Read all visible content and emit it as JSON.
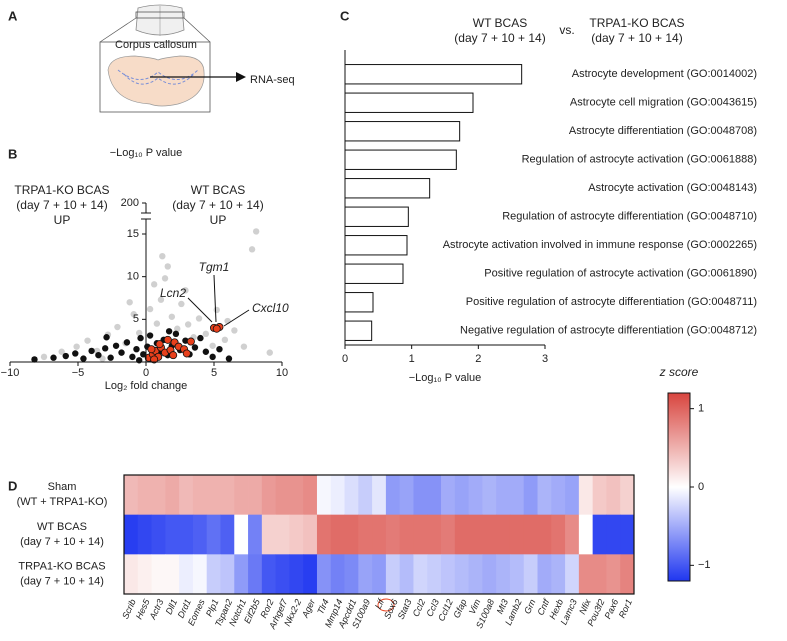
{
  "panel_labels": [
    "A",
    "B",
    "C",
    "D"
  ],
  "diagram": {
    "labels": [
      "Corpus callosum",
      "RNA-seq"
    ]
  },
  "chart_data": [
    {
      "type": "scatter",
      "xlabel": "Log₂ fold change",
      "ylabel": "−Log₁₀ P value",
      "xlim": [
        -10,
        10
      ],
      "xticks": [
        {
          "value": -10,
          "label": "−10"
        },
        {
          "value": -5,
          "label": "−5"
        },
        0,
        5,
        10
      ],
      "ylim": [
        0,
        15
      ],
      "yticks": [
        5,
        10,
        15
      ],
      "y_break_tick": 200,
      "annotations": [
        {
          "text": [
            "TRPA1-KO BCAS",
            "(day 7 + 10 + 14)",
            "UP"
          ],
          "color": "#e8401c"
        },
        {
          "text": [
            "WT BCAS",
            "(day 7 + 10 + 14)",
            "UP"
          ],
          "color": "#2639e0"
        }
      ],
      "point_labels": [
        "Tgm1",
        "Lcn2",
        "Cxcl10"
      ],
      "series": [
        {
          "color": "#c4c4c4",
          "x": [
            -7.5,
            -6.2,
            -5.1,
            -4.3,
            -3.6,
            -2.8,
            -2.1,
            -1.5,
            -0.9,
            -0.5,
            0.3,
            0.8,
            1.1,
            1.4,
            1.6,
            1.9,
            2.3,
            2.6,
            3.1,
            3.5,
            3.9,
            4.4,
            5.2,
            5.8,
            6.5,
            7.2,
            8.1,
            7.8,
            1.2,
            0.6,
            -1.2,
            2.9,
            6.0,
            4.9,
            -3.2,
            9.1
          ],
          "values": [
            0.6,
            1.2,
            1.8,
            2.5,
            1.3,
            3.2,
            4.1,
            2.2,
            5.6,
            3.4,
            6.2,
            4.5,
            7.3,
            9.8,
            11.2,
            5.3,
            3.9,
            6.8,
            4.4,
            2.9,
            5.1,
            3.3,
            6.1,
            2.6,
            3.7,
            1.8,
            15.3,
            13.2,
            12.4,
            9.1,
            7.0,
            8.4,
            4.8,
            1.9,
            0.4,
            1.1
          ]
        },
        {
          "color": "#111111",
          "x": [
            -8.2,
            -6.8,
            -5.9,
            -5.2,
            -4.6,
            -4.0,
            -3.5,
            -3.0,
            -2.6,
            -2.2,
            -1.8,
            -1.4,
            -1.0,
            -0.7,
            -0.4,
            -0.2,
            0.1,
            0.3,
            0.5,
            0.8,
            1.0,
            1.3,
            1.6,
            1.9,
            2.2,
            2.5,
            2.9,
            3.2,
            3.6,
            4.0,
            4.4,
            4.9,
            5.4,
            6.1,
            -2.9,
            -0.5,
            0.4,
            1.7
          ],
          "values": [
            0.3,
            0.5,
            0.7,
            1.0,
            0.4,
            1.3,
            0.8,
            1.6,
            0.5,
            1.9,
            1.1,
            2.3,
            0.6,
            1.5,
            2.8,
            0.9,
            1.8,
            3.1,
            0.7,
            2.2,
            1.2,
            2.6,
            0.8,
            1.9,
            3.3,
            1.4,
            2.5,
            0.9,
            1.7,
            2.8,
            1.2,
            0.6,
            1.5,
            0.4,
            2.9,
            0.2,
            0.3,
            3.6
          ]
        },
        {
          "color": "#e8401c",
          "x": [
            5.0,
            5.4,
            5.2,
            0.2,
            0.5,
            0.7,
            0.9,
            1.1,
            1.4,
            1.8,
            2.1,
            2.4,
            2.8,
            3.3,
            0.4,
            1.6,
            1.0,
            0.6,
            3.0,
            2.0
          ],
          "values": [
            4.0,
            4.1,
            3.9,
            0.5,
            0.9,
            1.3,
            0.6,
            1.7,
            1.1,
            1.4,
            2.3,
            1.8,
            1.5,
            2.4,
            1.5,
            2.6,
            2.1,
            0.3,
            1.0,
            0.8
          ]
        }
      ]
    },
    {
      "type": "bar",
      "orientation": "horizontal",
      "comparison": {
        "left": [
          "WT BCAS",
          "(day 7 + 10 + 14)"
        ],
        "left_color": "#2639e0",
        "vs": "vs.",
        "right": [
          "TRPA1-KO BCAS",
          "(day 7 + 10 + 14)"
        ],
        "right_color": "#e8401c"
      },
      "xlabel": "−Log₁₀ P value",
      "categories": [
        "Astrocyte development (GO:0014002)",
        "Astrocyte cell migration (GO:0043615)",
        "Astrocyte differentiation (GO:0048708)",
        "Regulation of astrocyte activation (GO:0061888)",
        "Astrocyte activation (GO:0048143)",
        "Regulation of astrocyte differentiation (GO:0048710)",
        "Astrocyte activation involved in immune response (GO:0002265)",
        "Positive regulation of astrocyte activation (GO:0061890)",
        "Positive regulation of astrocyte differentiation (GO:0048711)",
        "Negative regulation of astrocyte differentiation (GO:0048712)"
      ],
      "values": [
        2.65,
        1.92,
        1.72,
        1.67,
        1.27,
        0.95,
        0.93,
        0.87,
        0.42,
        0.4
      ],
      "color": "#ffffff",
      "xlim": [
        0,
        3
      ],
      "xticks": [
        0,
        1,
        2,
        3
      ]
    },
    {
      "type": "heatmap",
      "rows": [
        [
          "Sham",
          "(WT + TRPA1-KO)"
        ],
        [
          "WT BCAS",
          "(day 7 + 10 + 14)"
        ],
        [
          "TRPA1-KO BCAS",
          "(day 7 + 10 + 14)"
        ]
      ],
      "categories": [
        "Scrib",
        "Hes5",
        "Actr3",
        "Dll1",
        "Drd1",
        "Eomes",
        "Plp1",
        "Tspan2",
        "Notch1",
        "Eif2b5",
        "Ror2",
        "Arhgef7",
        "Nkx2-2",
        "Ager",
        "Tlr4",
        "Mmp14",
        "Apcdd1",
        "S100a9",
        "Lif",
        "Sox6",
        "Stat3",
        "Ccl2",
        "Ccl3",
        "Ccl12",
        "Gfap",
        "Vim",
        "S100a8",
        "Mt3",
        "Lamb2",
        "Grn",
        "Cntf",
        "Hexb",
        "Lamc3",
        "Nfix",
        "Pou3f2",
        "Pax6",
        "Ror1"
      ],
      "values": [
        [
          0.45,
          0.5,
          0.5,
          0.55,
          0.45,
          0.5,
          0.5,
          0.5,
          0.55,
          0.55,
          0.65,
          0.7,
          0.7,
          0.75,
          -0.05,
          -0.1,
          -0.2,
          -0.3,
          -0.15,
          -0.6,
          -0.55,
          -0.65,
          -0.65,
          -0.5,
          -0.55,
          -0.5,
          -0.45,
          -0.5,
          -0.5,
          -0.6,
          -0.45,
          -0.5,
          -0.55,
          0.15,
          0.35,
          0.4,
          0.3
        ],
        [
          -1.15,
          -1.1,
          -1.05,
          -1.0,
          -1.0,
          -0.95,
          -0.85,
          -0.95,
          0.0,
          -0.75,
          0.3,
          0.3,
          0.35,
          0.4,
          0.9,
          0.95,
          0.95,
          0.9,
          0.9,
          0.85,
          0.9,
          0.9,
          0.9,
          0.85,
          0.95,
          0.95,
          0.95,
          0.95,
          0.95,
          0.95,
          0.95,
          0.9,
          0.75,
          0.0,
          -1.1,
          -1.1,
          -1.1
        ],
        [
          0.15,
          0.1,
          0.05,
          0.05,
          -0.1,
          -0.05,
          -0.3,
          -0.35,
          -0.6,
          -0.8,
          -1.0,
          -1.05,
          -1.1,
          -1.15,
          -0.65,
          -0.75,
          -0.7,
          -0.55,
          -0.6,
          -0.3,
          -0.4,
          -0.25,
          -0.3,
          -0.35,
          -0.4,
          -0.45,
          -0.5,
          -0.45,
          -0.4,
          -0.3,
          -0.5,
          -0.45,
          -0.25,
          0.75,
          0.75,
          0.7,
          0.8
        ]
      ],
      "colorbar_title": "z score",
      "colormap": [
        "#1f36f0",
        "#ffffff",
        "#d8453f"
      ],
      "zlim": [
        -1.2,
        1.2
      ],
      "zticks": [
        1,
        0,
        {
          "value": -1,
          "label": "−1"
        }
      ]
    }
  ]
}
